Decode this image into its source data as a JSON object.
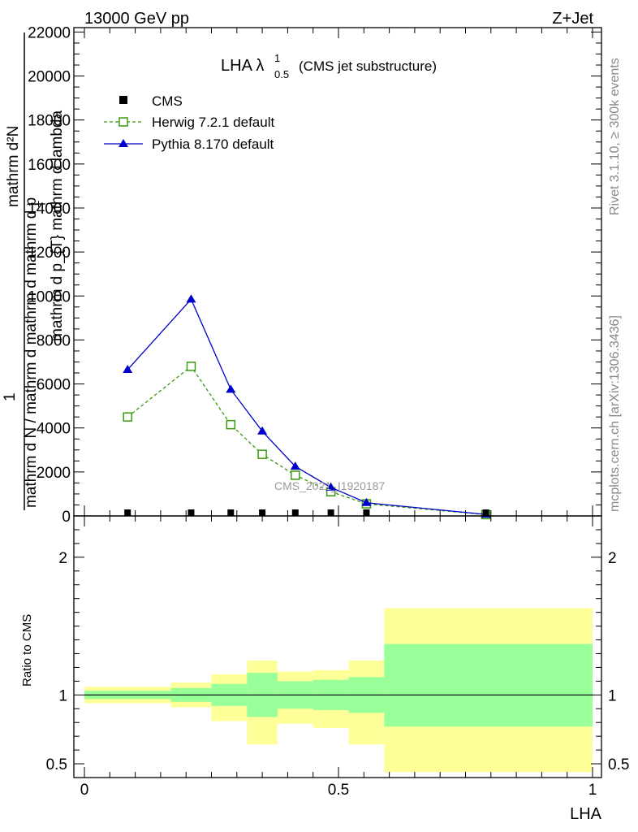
{
  "header": {
    "left": "13000 GeV pp",
    "right": "Z+Jet",
    "side_top": "Rivet 3.1.10, ≥ 300k events",
    "side_bottom": "mcplots.cern.ch [arXiv:1306.3436]"
  },
  "chart_data": [
    {
      "type": "line",
      "title_main": "LHA λ",
      "title_sup": "1",
      "title_sub": "0.5",
      "title_rest": "(CMS jet substructure)",
      "watermark": "CMS_2021_I1920187",
      "ylabel_numer": "mathrm d²N",
      "ylabel_denom": "mathrm d p_{T} mathrm d lambda",
      "ylabel_one": "1",
      "ylabel_frac": "mathrm d N / mathrm d mathrm d mathrm d p",
      "ylabel_sub": "T",
      "ylim": [
        0,
        22200
      ],
      "xlim": [
        0,
        1
      ],
      "y_ticks": [
        "0",
        "2000",
        "4000",
        "6000",
        "8000",
        "10000",
        "12000",
        "14000",
        "16000",
        "18000",
        "20000",
        "22000"
      ],
      "y_tick_values": [
        0,
        2000,
        4000,
        6000,
        8000,
        10000,
        12000,
        14000,
        16000,
        18000,
        20000,
        22000
      ],
      "legend": [
        "CMS",
        "Herwig 7.2.1 default",
        "Pythia 8.170 default"
      ],
      "series": [
        {
          "name": "CMS",
          "color": "#000000",
          "x": [
            0.085,
            0.21,
            0.288,
            0.35,
            0.415,
            0.485,
            0.555,
            0.79
          ],
          "values": [
            30,
            30,
            30,
            30,
            30,
            30,
            30,
            30
          ]
        },
        {
          "name": "Herwig 7.2.1 default",
          "color": "#3a9a0f",
          "x": [
            0.085,
            0.21,
            0.288,
            0.35,
            0.415,
            0.485,
            0.555,
            0.79
          ],
          "values": [
            4500,
            6800,
            4150,
            2800,
            1850,
            1100,
            550,
            60
          ]
        },
        {
          "name": "Pythia 8.170 default",
          "color": "#0000cc",
          "x": [
            0.085,
            0.21,
            0.288,
            0.35,
            0.415,
            0.485,
            0.555,
            0.79
          ],
          "values": [
            6650,
            9850,
            5750,
            3850,
            2250,
            1300,
            600,
            70
          ]
        }
      ]
    },
    {
      "type": "area",
      "ylabel": "Ratio to CMS",
      "xlabel": "LHA",
      "ylim": [
        0.4,
        2.3
      ],
      "xlim": [
        0,
        1
      ],
      "reference_line": 1,
      "y_ticks": [
        "0.5",
        "1",
        "2"
      ],
      "y_tick_values": [
        0.5,
        1,
        2
      ],
      "x_ticks": [
        "0",
        "0.5",
        "1"
      ],
      "x_tick_values": [
        0,
        0.5,
        1
      ],
      "bins": [
        {
          "lo": 0.0,
          "hi": 0.17,
          "green": [
            0.97,
            1.03
          ],
          "yellow": [
            0.94,
            1.06
          ]
        },
        {
          "lo": 0.17,
          "hi": 0.25,
          "green": [
            0.95,
            1.05
          ],
          "yellow": [
            0.91,
            1.09
          ]
        },
        {
          "lo": 0.25,
          "hi": 0.32,
          "green": [
            0.92,
            1.08
          ],
          "yellow": [
            0.81,
            1.15
          ]
        },
        {
          "lo": 0.32,
          "hi": 0.38,
          "green": [
            0.84,
            1.16
          ],
          "yellow": [
            0.64,
            1.25
          ]
        },
        {
          "lo": 0.38,
          "hi": 0.45,
          "green": [
            0.9,
            1.1
          ],
          "yellow": [
            0.79,
            1.17
          ]
        },
        {
          "lo": 0.45,
          "hi": 0.52,
          "green": [
            0.89,
            1.11
          ],
          "yellow": [
            0.76,
            1.18
          ]
        },
        {
          "lo": 0.52,
          "hi": 0.59,
          "green": [
            0.87,
            1.13
          ],
          "yellow": [
            0.64,
            1.25
          ]
        },
        {
          "lo": 0.59,
          "hi": 1.0,
          "green": [
            0.77,
            1.37
          ],
          "yellow": [
            0.44,
            1.63
          ]
        }
      ]
    }
  ]
}
